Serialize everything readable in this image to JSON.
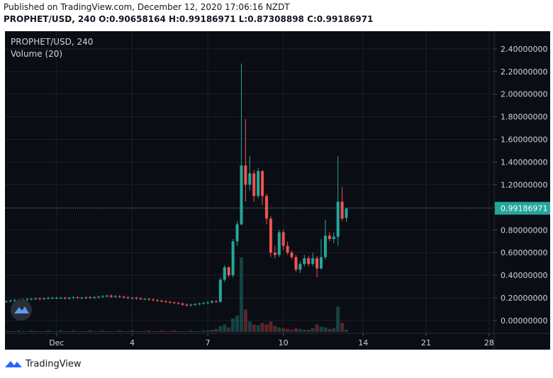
{
  "header": {
    "published": "Published on TradingView.com, December 12, 2020 17:06:16 NZDT",
    "ohlc": "PROPHET/USD, 240 O:0.90658164 H:0.99186971 L:0.87308898 C:0.99186971"
  },
  "footer": {
    "brand": "TradingView"
  },
  "chart_data": {
    "type": "candlestick",
    "symbol": "PROPHET/USD, 240",
    "volume_label": "Volume (20)",
    "up_color": "#26a69a",
    "down_color": "#ef5350",
    "grid": true,
    "xlim": [
      -12.3,
      104.2
    ],
    "ylim": [
      -0.113,
      2.556
    ],
    "xticks": [
      {
        "value": 0,
        "label": "Dec"
      },
      {
        "value": 18,
        "label": "4"
      },
      {
        "value": 36,
        "label": "7"
      },
      {
        "value": 54,
        "label": "10"
      },
      {
        "value": 73,
        "label": "14"
      },
      {
        "value": 88,
        "label": "21"
      },
      {
        "value": 103,
        "label": "28"
      }
    ],
    "yticks": [
      {
        "value": 0,
        "label": "0.00000000"
      },
      {
        "value": 0.2,
        "label": "0.20000000"
      },
      {
        "value": 0.4,
        "label": "0.40000000"
      },
      {
        "value": 0.6,
        "label": "0.60000000"
      },
      {
        "value": 0.8,
        "label": "0.80000000"
      },
      {
        "value": 1,
        "label": "1.00000000"
      },
      {
        "value": 1.2,
        "label": "1.20000000"
      },
      {
        "value": 1.4,
        "label": "1.40000000"
      },
      {
        "value": 1.6,
        "label": "1.60000000"
      },
      {
        "value": 1.8,
        "label": "1.80000000"
      },
      {
        "value": 2,
        "label": "2.00000000"
      },
      {
        "value": 2.2,
        "label": "2.20000000"
      },
      {
        "value": 2.4,
        "label": "2.40000000"
      }
    ],
    "last_price": 0.99186971,
    "x": [
      -12,
      -11,
      -10,
      -9,
      -8,
      -7,
      -6,
      -5,
      -4,
      -3,
      -2,
      -1,
      0,
      1,
      2,
      3,
      4,
      5,
      6,
      7,
      8,
      9,
      10,
      11,
      12,
      13,
      14,
      15,
      16,
      17,
      18,
      19,
      20,
      21,
      22,
      23,
      24,
      25,
      26,
      27,
      28,
      29,
      30,
      31,
      32,
      33,
      34,
      35,
      36,
      37,
      38,
      39,
      40,
      41,
      42,
      43,
      44,
      45,
      46,
      47,
      48,
      49,
      50,
      51,
      52,
      53,
      54,
      55,
      56,
      57,
      58,
      59,
      60,
      61,
      62,
      63,
      64,
      65,
      66,
      67,
      68,
      69
    ],
    "open": [
      0.165,
      0.17,
      0.175,
      0.18,
      0.18,
      0.185,
      0.19,
      0.19,
      0.195,
      0.19,
      0.195,
      0.2,
      0.2,
      0.2,
      0.2,
      0.195,
      0.2,
      0.205,
      0.2,
      0.2,
      0.205,
      0.2,
      0.205,
      0.21,
      0.215,
      0.22,
      0.21,
      0.215,
      0.21,
      0.205,
      0.2,
      0.2,
      0.195,
      0.19,
      0.19,
      0.185,
      0.18,
      0.175,
      0.17,
      0.165,
      0.16,
      0.155,
      0.15,
      0.14,
      0.135,
      0.14,
      0.145,
      0.15,
      0.155,
      0.16,
      0.17,
      0.165,
      0.36,
      0.47,
      0.4,
      0.7,
      0.85,
      1.37,
      1.2,
      1.3,
      1.1,
      1.32,
      1.1,
      0.9,
      0.6,
      0.58,
      0.78,
      0.66,
      0.6,
      0.56,
      0.45,
      0.5,
      0.55,
      0.5,
      0.55,
      0.46,
      0.56,
      0.75,
      0.72,
      0.74,
      1.05,
      0.90658164
    ],
    "high": [
      0.18,
      0.185,
      0.19,
      0.19,
      0.195,
      0.2,
      0.2,
      0.205,
      0.205,
      0.205,
      0.21,
      0.21,
      0.21,
      0.21,
      0.21,
      0.21,
      0.215,
      0.215,
      0.21,
      0.215,
      0.215,
      0.215,
      0.22,
      0.225,
      0.23,
      0.23,
      0.225,
      0.225,
      0.22,
      0.215,
      0.21,
      0.21,
      0.205,
      0.2,
      0.2,
      0.195,
      0.19,
      0.185,
      0.18,
      0.175,
      0.17,
      0.165,
      0.16,
      0.15,
      0.15,
      0.155,
      0.16,
      0.165,
      0.17,
      0.18,
      0.18,
      0.38,
      0.49,
      0.48,
      0.72,
      0.88,
      2.27,
      1.78,
      1.45,
      1.33,
      1.35,
      1.33,
      1.12,
      0.92,
      0.66,
      0.8,
      0.8,
      0.7,
      0.62,
      0.58,
      0.52,
      0.58,
      0.57,
      0.6,
      0.57,
      0.72,
      0.89,
      0.78,
      0.78,
      1.45,
      1.18,
      0.99186971
    ],
    "low": [
      0.155,
      0.16,
      0.165,
      0.17,
      0.17,
      0.175,
      0.18,
      0.18,
      0.18,
      0.18,
      0.185,
      0.19,
      0.19,
      0.19,
      0.185,
      0.185,
      0.19,
      0.19,
      0.19,
      0.19,
      0.19,
      0.19,
      0.195,
      0.2,
      0.205,
      0.2,
      0.2,
      0.2,
      0.195,
      0.19,
      0.19,
      0.185,
      0.18,
      0.18,
      0.175,
      0.17,
      0.165,
      0.16,
      0.155,
      0.15,
      0.145,
      0.14,
      0.13,
      0.125,
      0.125,
      0.13,
      0.135,
      0.14,
      0.145,
      0.15,
      0.155,
      0.16,
      0.34,
      0.38,
      0.38,
      0.66,
      0.84,
      1.05,
      1.15,
      1.05,
      1.08,
      1.02,
      0.85,
      0.56,
      0.55,
      0.56,
      0.62,
      0.58,
      0.54,
      0.43,
      0.42,
      0.48,
      0.48,
      0.48,
      0.38,
      0.45,
      0.54,
      0.7,
      0.68,
      0.66,
      0.88,
      0.87308898
    ],
    "close": [
      0.17,
      0.175,
      0.18,
      0.18,
      0.185,
      0.19,
      0.19,
      0.195,
      0.19,
      0.195,
      0.2,
      0.2,
      0.2,
      0.2,
      0.195,
      0.2,
      0.205,
      0.2,
      0.2,
      0.205,
      0.2,
      0.205,
      0.21,
      0.215,
      0.22,
      0.21,
      0.215,
      0.21,
      0.205,
      0.2,
      0.2,
      0.195,
      0.19,
      0.19,
      0.185,
      0.18,
      0.175,
      0.17,
      0.165,
      0.16,
      0.155,
      0.15,
      0.14,
      0.135,
      0.14,
      0.145,
      0.15,
      0.155,
      0.16,
      0.17,
      0.165,
      0.36,
      0.47,
      0.4,
      0.7,
      0.85,
      1.37,
      1.2,
      1.3,
      1.1,
      1.32,
      1.1,
      0.9,
      0.6,
      0.58,
      0.78,
      0.66,
      0.6,
      0.56,
      0.45,
      0.5,
      0.55,
      0.5,
      0.55,
      0.46,
      0.56,
      0.75,
      0.72,
      0.74,
      1.05,
      0.9,
      0.99186971
    ],
    "volume": [
      1,
      1,
      1,
      2,
      1,
      1,
      2,
      1,
      1,
      1,
      2,
      1,
      1,
      2,
      1,
      1,
      2,
      1,
      1,
      1,
      2,
      1,
      1,
      2,
      1,
      1,
      1,
      2,
      1,
      1,
      2,
      1,
      1,
      1,
      2,
      1,
      1,
      2,
      1,
      1,
      2,
      1,
      1,
      1,
      2,
      1,
      1,
      2,
      2,
      3,
      4,
      8,
      10,
      6,
      18,
      22,
      100,
      30,
      14,
      10,
      9,
      12,
      10,
      14,
      8,
      6,
      5,
      4,
      3,
      5,
      4,
      3,
      3,
      5,
      10,
      7,
      6,
      4,
      5,
      34,
      12,
      3
    ]
  }
}
